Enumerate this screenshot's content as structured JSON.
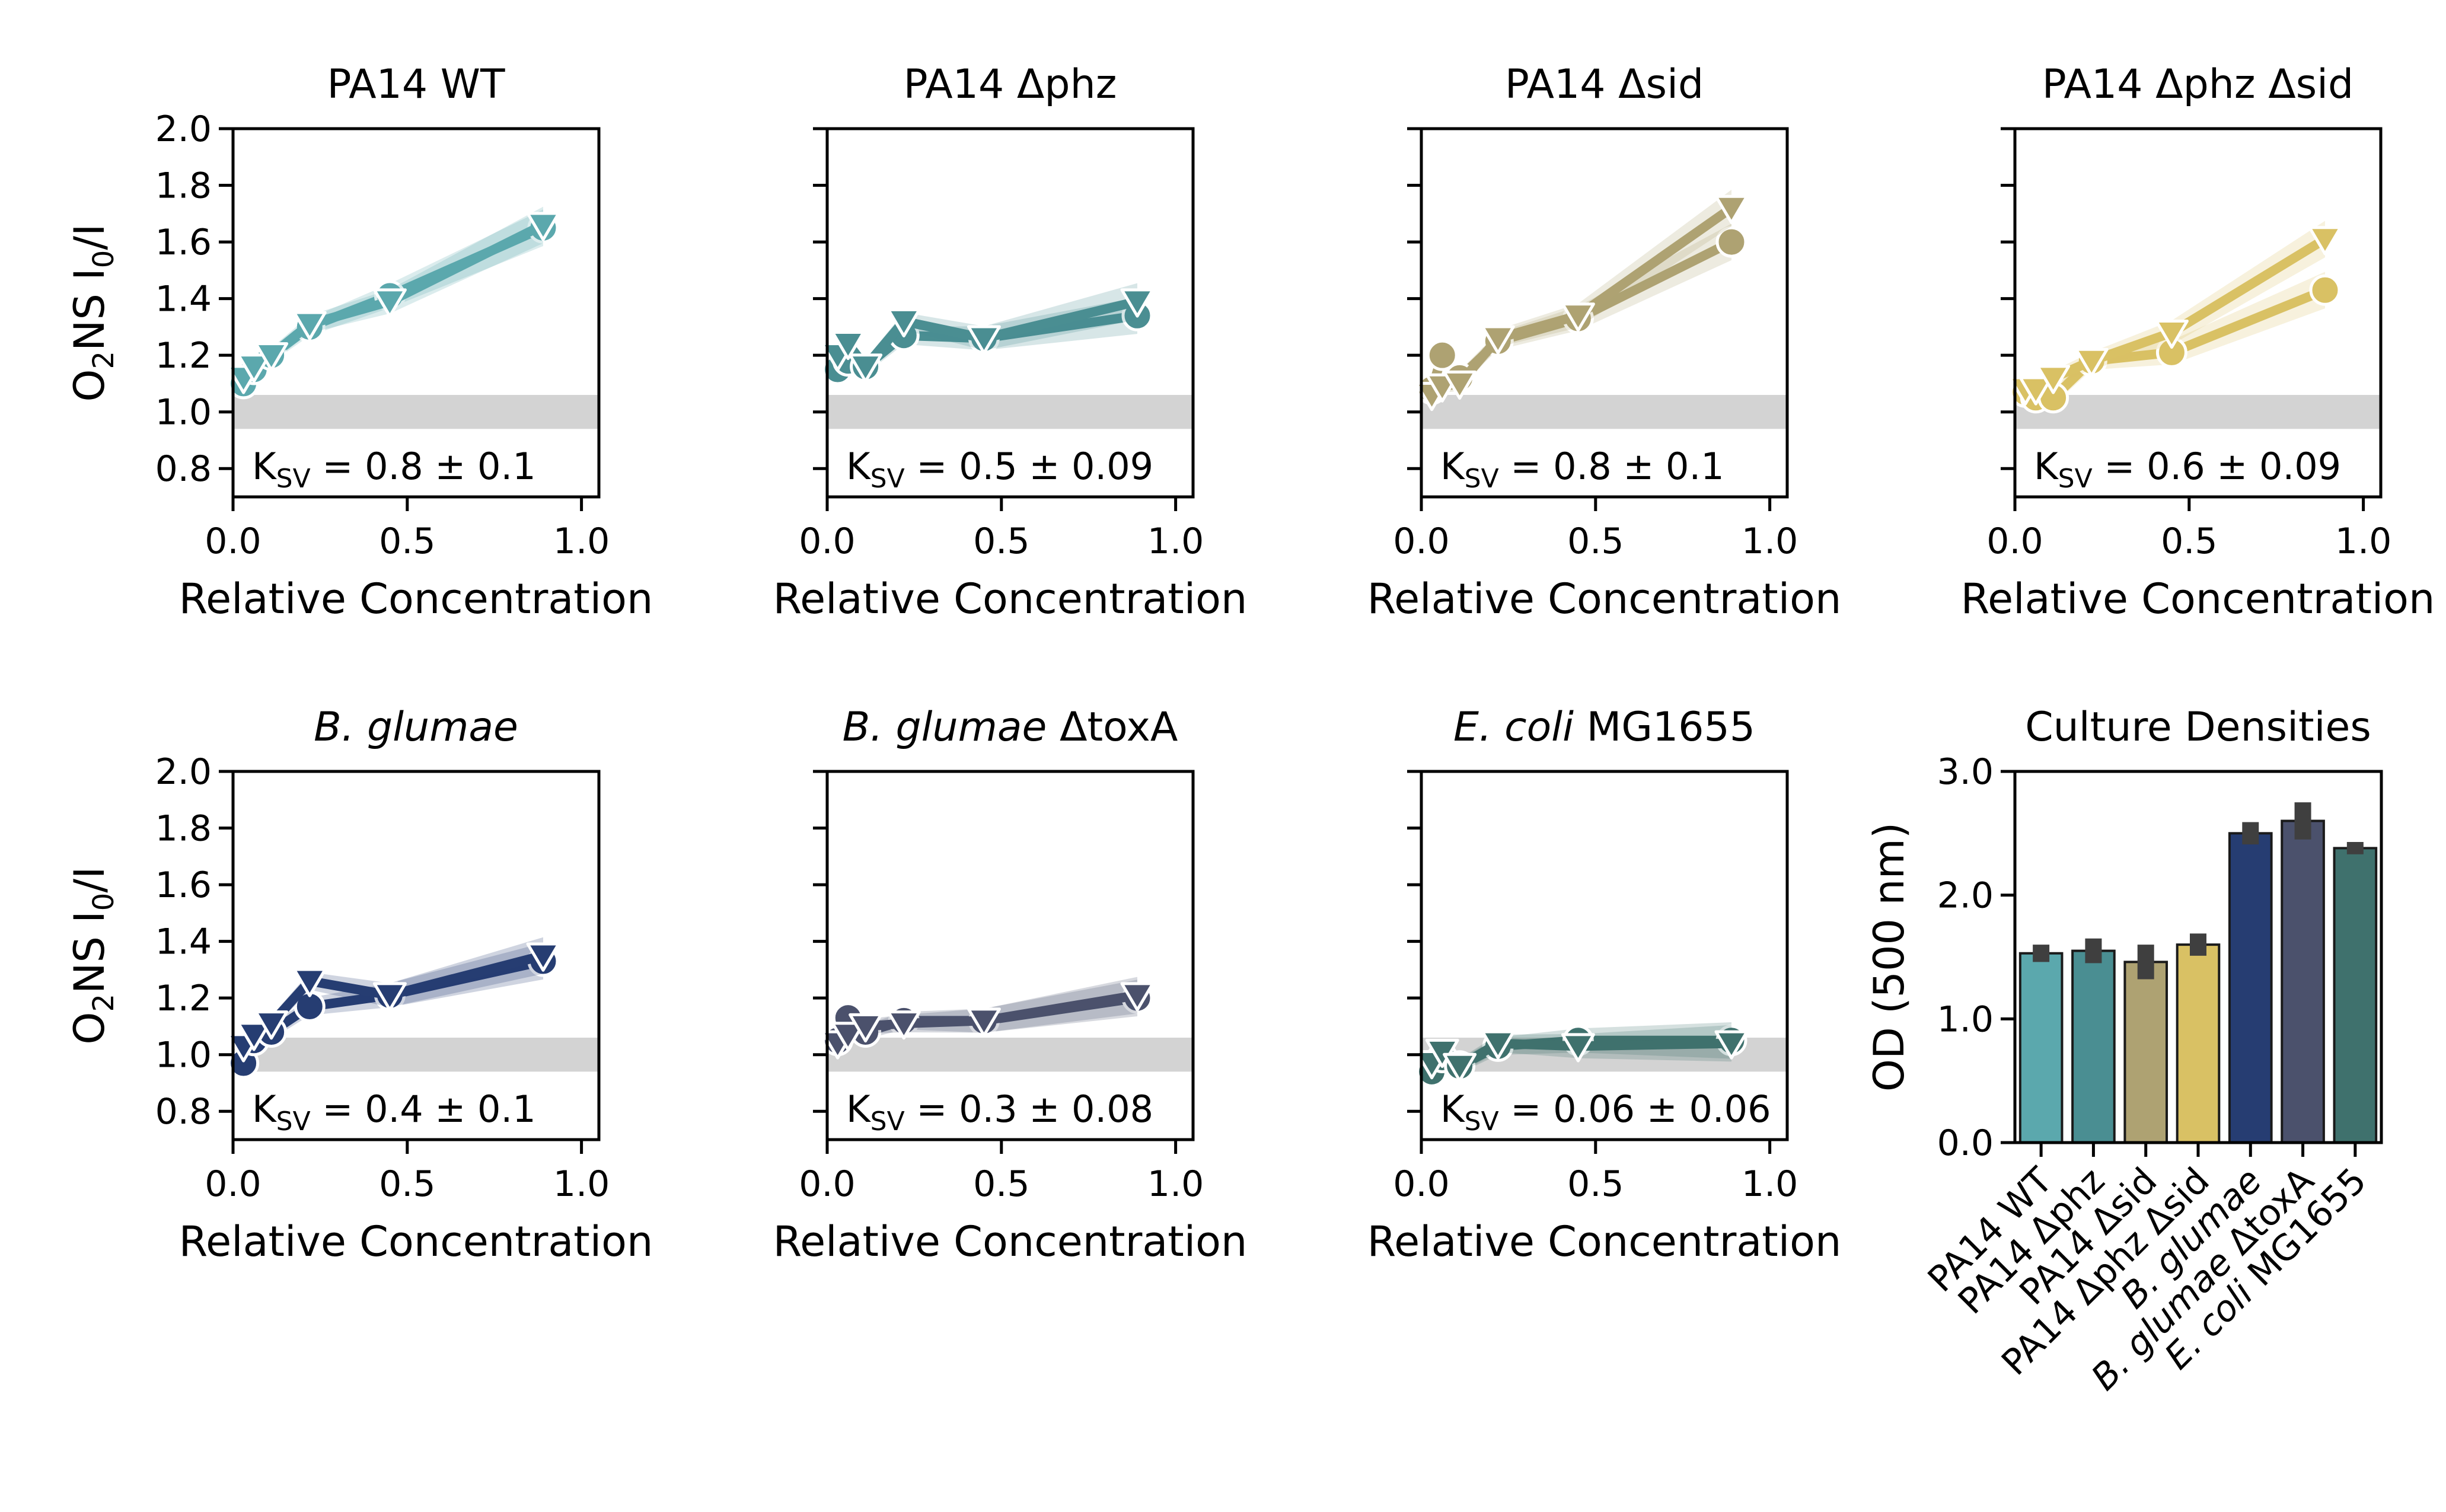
{
  "shared": {
    "ylabel_prefix": "O",
    "ylabel_sub": "2",
    "ylabel_mid": "NS I",
    "ylabel_sub2": "0",
    "ylabel_suffix": "/I",
    "xlabel": "Relative Concentration",
    "ytick_labels": [
      "0.8",
      "1.0",
      "1.2",
      "1.4",
      "1.6",
      "1.8",
      "2.0"
    ],
    "xtick_labels": [
      "0.0",
      "0.5",
      "1.0"
    ],
    "ksv_prefix": "K",
    "ksv_sub": "SV",
    "reference_band": [
      0.94,
      1.06
    ],
    "reference_band_color": "#d3d3d3"
  },
  "chart_data": [
    {
      "type": "line",
      "title": "PA14 WT",
      "title_italic": "",
      "title_rest": "",
      "ksv_text": " = 0.8 ± 0.1",
      "color": "#5ba8ad",
      "xlim": [
        0,
        1.05
      ],
      "ylim": [
        0.7,
        2.0
      ],
      "series": [
        {
          "marker": "circle",
          "x": [
            0.03,
            0.06,
            0.11,
            0.22,
            0.45,
            0.89
          ],
          "y": [
            1.1,
            1.15,
            1.2,
            1.3,
            1.41,
            1.65
          ]
        },
        {
          "marker": "triangle",
          "x": [
            0.03,
            0.06,
            0.11,
            0.22,
            0.45,
            0.89
          ],
          "y": [
            1.12,
            1.16,
            1.2,
            1.31,
            1.39,
            1.66
          ]
        }
      ]
    },
    {
      "type": "line",
      "title": "PA14 Δphz",
      "title_italic": "",
      "title_rest": "",
      "ksv_text": " = 0.5 ± 0.09",
      "color": "#4a8e92",
      "xlim": [
        0,
        1.05
      ],
      "ylim": [
        0.7,
        2.0
      ],
      "series": [
        {
          "marker": "circle",
          "x": [
            0.03,
            0.06,
            0.11,
            0.22,
            0.45,
            0.89
          ],
          "y": [
            1.15,
            1.18,
            1.16,
            1.27,
            1.26,
            1.34
          ]
        },
        {
          "marker": "triangle",
          "x": [
            0.03,
            0.06,
            0.11,
            0.22,
            0.45,
            0.89
          ],
          "y": [
            1.2,
            1.24,
            1.16,
            1.32,
            1.26,
            1.39
          ]
        }
      ]
    },
    {
      "type": "line",
      "title": "PA14 Δsid",
      "title_italic": "",
      "title_rest": "",
      "ksv_text": " = 0.8 ± 0.1",
      "color": "#aea272",
      "xlim": [
        0,
        1.05
      ],
      "ylim": [
        0.7,
        2.0
      ],
      "series": [
        {
          "marker": "circle",
          "x": [
            0.03,
            0.06,
            0.11,
            0.22,
            0.45,
            0.89
          ],
          "y": [
            1.08,
            1.2,
            1.12,
            1.25,
            1.33,
            1.6
          ]
        },
        {
          "marker": "triangle",
          "x": [
            0.03,
            0.06,
            0.11,
            0.22,
            0.45,
            0.89
          ],
          "y": [
            1.06,
            1.09,
            1.1,
            1.26,
            1.34,
            1.72
          ]
        }
      ]
    },
    {
      "type": "line",
      "title": "PA14 Δphz Δsid",
      "title_italic": "",
      "title_rest": "",
      "ksv_text": " = 0.6 ± 0.09",
      "color": "#d9c164",
      "xlim": [
        0,
        1.05
      ],
      "ylim": [
        0.7,
        2.0
      ],
      "series": [
        {
          "marker": "circle",
          "x": [
            0.03,
            0.06,
            0.11,
            0.22,
            0.45,
            0.89
          ],
          "y": [
            1.07,
            1.05,
            1.05,
            1.18,
            1.21,
            1.43
          ]
        },
        {
          "marker": "triangle",
          "x": [
            0.03,
            0.06,
            0.11,
            0.22,
            0.45,
            0.89
          ],
          "y": [
            1.08,
            1.08,
            1.12,
            1.18,
            1.28,
            1.61
          ]
        }
      ]
    },
    {
      "type": "line",
      "title": "",
      "title_italic": "B. glumae",
      "title_rest": "",
      "ksv_text": " = 0.4 ± 0.1",
      "color": "#263d72",
      "xlim": [
        0,
        1.05
      ],
      "ylim": [
        0.7,
        2.0
      ],
      "series": [
        {
          "marker": "circle",
          "x": [
            0.03,
            0.06,
            0.11,
            0.22,
            0.45,
            0.89
          ],
          "y": [
            0.97,
            1.05,
            1.08,
            1.17,
            1.21,
            1.33
          ]
        },
        {
          "marker": "triangle",
          "x": [
            0.03,
            0.06,
            0.11,
            0.22,
            0.45,
            0.89
          ],
          "y": [
            1.03,
            1.07,
            1.11,
            1.26,
            1.21,
            1.35
          ]
        }
      ]
    },
    {
      "type": "line",
      "title": "",
      "title_italic": "B. glumae",
      "title_rest": " ΔtoxA",
      "ksv_text": " = 0.3 ± 0.08",
      "color": "#4b516c",
      "xlim": [
        0,
        1.05
      ],
      "ylim": [
        0.7,
        2.0
      ],
      "series": [
        {
          "marker": "circle",
          "x": [
            0.03,
            0.06,
            0.11,
            0.22,
            0.45,
            0.89
          ],
          "y": [
            1.05,
            1.13,
            1.08,
            1.12,
            1.12,
            1.2
          ]
        },
        {
          "marker": "triangle",
          "x": [
            0.03,
            0.06,
            0.11,
            0.22,
            0.45,
            0.89
          ],
          "y": [
            1.04,
            1.07,
            1.1,
            1.11,
            1.12,
            1.21
          ]
        }
      ]
    },
    {
      "type": "line",
      "title": "",
      "title_italic": "E. coli",
      "title_rest": " MG1655",
      "ksv_text": " = 0.06 ± 0.06",
      "color": "#3f716d",
      "xlim": [
        0,
        1.05
      ],
      "ylim": [
        0.7,
        2.0
      ],
      "series": [
        {
          "marker": "circle",
          "x": [
            0.03,
            0.06,
            0.11,
            0.22,
            0.45,
            0.89
          ],
          "y": [
            0.94,
            0.99,
            0.96,
            1.03,
            1.05,
            1.05
          ]
        },
        {
          "marker": "triangle",
          "x": [
            0.03,
            0.06,
            0.11,
            0.22,
            0.45,
            0.89
          ],
          "y": [
            0.97,
            1.01,
            0.96,
            1.04,
            1.03,
            1.04
          ]
        }
      ]
    },
    {
      "type": "bar",
      "title": "Culture Densities",
      "ylabel": "OD (500 nm)",
      "ylim": [
        0,
        3.0
      ],
      "ytick_labels": [
        "0.0",
        "1.0",
        "2.0",
        "3.0"
      ],
      "categories": [
        {
          "plain": "PA14 WT",
          "italic": "",
          "rest": ""
        },
        {
          "plain": "PA14 Δphz",
          "italic": "",
          "rest": ""
        },
        {
          "plain": "PA14 Δsid",
          "italic": "",
          "rest": ""
        },
        {
          "plain": "PA14 Δphz Δsid",
          "italic": "",
          "rest": ""
        },
        {
          "plain": "",
          "italic": "B. glumae",
          "rest": ""
        },
        {
          "plain": "",
          "italic": "B. glumae",
          "rest": " ΔtoxA"
        },
        {
          "plain": "",
          "italic": "E. coli",
          "rest": " MG1655"
        }
      ],
      "values": [
        1.53,
        1.55,
        1.46,
        1.6,
        2.5,
        2.6,
        2.38
      ],
      "errors": [
        0.07,
        0.1,
        0.14,
        0.09,
        0.09,
        0.15,
        0.05
      ],
      "colors": [
        "#5ba8ad",
        "#4a8e92",
        "#aea272",
        "#d9c164",
        "#263d72",
        "#4b516c",
        "#3f716d"
      ],
      "error_color": "#3f3f3f"
    }
  ]
}
